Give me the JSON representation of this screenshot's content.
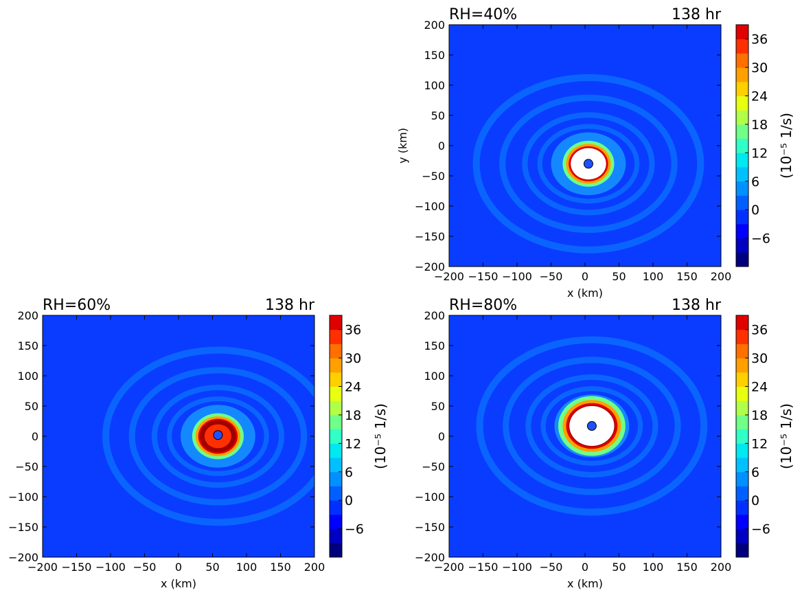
{
  "chart_data": [
    {
      "type": "heatmap",
      "panel": "top-right",
      "title_left": "RH=40%",
      "title_right": "138 hr",
      "xlabel": "x (km)",
      "ylabel": "y (km)",
      "xlim": [
        -200,
        200
      ],
      "ylim": [
        -200,
        200
      ],
      "xticks": [
        -200,
        -150,
        -100,
        -50,
        0,
        50,
        100,
        150,
        200
      ],
      "yticks": [
        -200,
        -150,
        -100,
        -50,
        0,
        50,
        100,
        150,
        200
      ],
      "center_marker": {
        "x": 5,
        "y": -30
      },
      "eyewall": {
        "x": 5,
        "y": -30,
        "radius_km": 33,
        "white_core_radius_km": 26
      },
      "colorbar": {
        "label": "(10⁻⁵ 1/s)",
        "range": [
          -12,
          39
        ],
        "ticks": [
          -6,
          0,
          6,
          12,
          18,
          24,
          30,
          36
        ],
        "levels": [
          -12,
          -9,
          -6,
          -3,
          0,
          3,
          6,
          9,
          12,
          15,
          18,
          21,
          24,
          27,
          30,
          33,
          36,
          39
        ]
      }
    },
    {
      "type": "heatmap",
      "panel": "bottom-left",
      "title_left": "RH=60%",
      "title_right": "138 hr",
      "xlabel": "x (km)",
      "ylabel": "",
      "xlim": [
        -200,
        200
      ],
      "ylim": [
        -200,
        200
      ],
      "xticks": [
        -200,
        -150,
        -100,
        -50,
        0,
        50,
        100,
        150,
        200
      ],
      "yticks": [
        -200,
        -150,
        -100,
        -50,
        0,
        50,
        100,
        150,
        200
      ],
      "center_marker": {
        "x": 58,
        "y": 2
      },
      "eyewall": {
        "x": 58,
        "y": 0,
        "radius_km": 33,
        "white_core_radius_km": 0
      },
      "colorbar": {
        "label": "(10⁻⁵ 1/s)",
        "range": [
          -12,
          39
        ],
        "ticks": [
          -6,
          0,
          6,
          12,
          18,
          24,
          30,
          36
        ],
        "levels": [
          -12,
          -9,
          -6,
          -3,
          0,
          3,
          6,
          9,
          12,
          15,
          18,
          21,
          24,
          27,
          30,
          33,
          36,
          39
        ]
      }
    },
    {
      "type": "heatmap",
      "panel": "bottom-right",
      "title_left": "RH=80%",
      "title_right": "138 hr",
      "xlabel": "x (km)",
      "ylabel": "",
      "xlim": [
        -200,
        200
      ],
      "ylim": [
        -200,
        200
      ],
      "xticks": [
        -200,
        -150,
        -100,
        -50,
        0,
        50,
        100,
        150,
        200
      ],
      "yticks": [
        -200,
        -150,
        -100,
        -50,
        0,
        50,
        100,
        150,
        200
      ],
      "center_marker": {
        "x": 10,
        "y": 17
      },
      "eyewall": {
        "x": 10,
        "y": 17,
        "radius_km": 43,
        "white_core_radius_km": 33
      },
      "colorbar": {
        "label": "(10⁻⁵ 1/s)",
        "range": [
          -12,
          39
        ],
        "ticks": [
          -6,
          0,
          6,
          12,
          18,
          24,
          30,
          36
        ],
        "levels": [
          -12,
          -9,
          -6,
          -3,
          0,
          3,
          6,
          9,
          12,
          15,
          18,
          21,
          24,
          27,
          30,
          33,
          36,
          39
        ]
      }
    }
  ],
  "colors": {
    "background_field": "#0a3cff",
    "ring_band": "#0a6cff",
    "marker_fill": "#1e50ff",
    "level_colors": [
      "#00007f",
      "#0000c0",
      "#0000ff",
      "#0030ff",
      "#0060ff",
      "#0090ff",
      "#00c0ff",
      "#00e8f0",
      "#30ffc8",
      "#70ff88",
      "#b0ff48",
      "#e8ff10",
      "#ffd000",
      "#ffa000",
      "#ff7000",
      "#ff3000",
      "#e00000",
      "#a00000"
    ]
  }
}
